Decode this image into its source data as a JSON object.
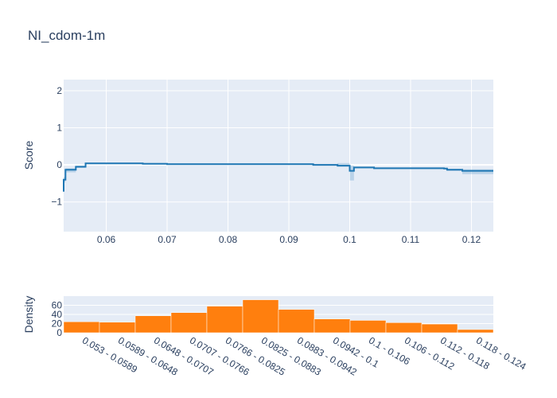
{
  "chart_data": [
    {
      "type": "line",
      "title": "NI_cdom-1m",
      "xlabel": "",
      "ylabel": "Score",
      "xlim": [
        0.053,
        0.1236
      ],
      "ylim": [
        -1.8,
        2.3
      ],
      "xticks": [
        0.06,
        0.07,
        0.08,
        0.09,
        0.1,
        0.11,
        0.12
      ],
      "xtick_labels": [
        "0.06",
        "0.07",
        "0.08",
        "0.09",
        "0.1",
        "0.11",
        "0.12"
      ],
      "yticks": [
        -1,
        0,
        1,
        2
      ],
      "ytick_labels": [
        "−1",
        "0",
        "1",
        "2"
      ],
      "grid": true,
      "series": [
        {
          "color": "#1f77b4",
          "band_color": "#1f77b4",
          "x": [
            0.053,
            0.053,
            0.0533,
            0.0533,
            0.055,
            0.055,
            0.0566,
            0.0566,
            0.066,
            0.066,
            0.07,
            0.07,
            0.094,
            0.094,
            0.098,
            0.098,
            0.1,
            0.1,
            0.1007,
            0.1007,
            0.104,
            0.104,
            0.1155,
            0.1155,
            0.116,
            0.116,
            0.1185,
            0.1185,
            0.1236
          ],
          "y": [
            -0.72,
            -0.4,
            -0.4,
            -0.13,
            -0.13,
            -0.05,
            -0.05,
            0.04,
            0.04,
            0.03,
            0.03,
            0.02,
            0.02,
            0.0,
            0.0,
            -0.02,
            -0.02,
            -0.16,
            -0.16,
            -0.07,
            -0.07,
            -0.09,
            -0.09,
            -0.1,
            -0.1,
            -0.13,
            -0.13,
            -0.16,
            -0.16
          ],
          "upper": [
            -0.55,
            -0.33,
            -0.33,
            -0.09,
            -0.09,
            -0.02,
            -0.02,
            0.06,
            0.06,
            0.05,
            0.05,
            0.04,
            0.04,
            0.02,
            0.02,
            0.05,
            0.05,
            -0.02,
            -0.02,
            -0.05,
            -0.05,
            -0.07,
            -0.07,
            -0.08,
            -0.08,
            -0.11,
            -0.11,
            -0.12,
            -0.12
          ],
          "lower": [
            -0.88,
            -0.47,
            -0.47,
            -0.2,
            -0.2,
            -0.08,
            -0.08,
            0.02,
            0.02,
            0.01,
            0.01,
            0.0,
            0.0,
            -0.02,
            -0.02,
            -0.05,
            -0.05,
            -0.42,
            -0.42,
            -0.09,
            -0.09,
            -0.11,
            -0.11,
            -0.12,
            -0.12,
            -0.16,
            -0.16,
            -0.25,
            -0.25
          ]
        }
      ]
    },
    {
      "type": "bar",
      "title": "",
      "xlabel": "",
      "ylabel": "Density",
      "ylim": [
        0,
        80
      ],
      "yticks": [
        0,
        20,
        40,
        60
      ],
      "ytick_labels": [
        "0",
        "20",
        "40",
        "60"
      ],
      "grid": true,
      "color": "#ff7f0e",
      "categories": [
        "0.053 - 0.0589",
        "0.0589 - 0.0648",
        "0.0648 - 0.0707",
        "0.0707 - 0.0766",
        "0.0766 - 0.0825",
        "0.0825 - 0.0883",
        "0.0883 - 0.0942",
        "0.0942 - 0.1",
        "0.1 - 0.106",
        "0.106 - 0.112",
        "0.112 - 0.118",
        "0.118 - 0.124"
      ],
      "values": [
        24,
        23,
        37,
        44,
        58,
        72,
        51,
        30,
        27,
        22,
        19,
        7
      ]
    }
  ]
}
